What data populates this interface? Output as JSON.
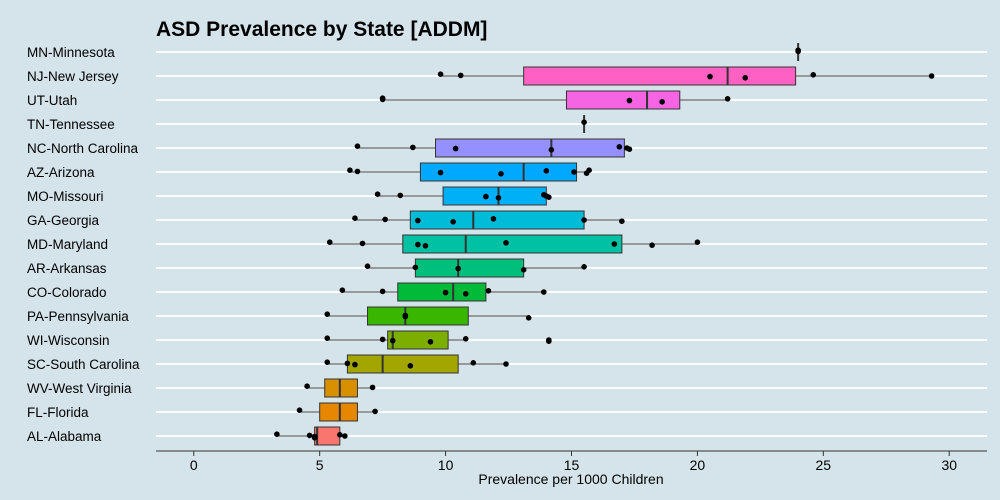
{
  "chart_data": {
    "type": "boxplot",
    "title": "ASD Prevalence by State [ADDM]",
    "xlabel": "Prevalence per 1000 Children",
    "ylabel": "",
    "xlim": [
      -1.5,
      31.5
    ],
    "xticks": [
      0,
      5,
      10,
      15,
      20,
      25,
      30
    ],
    "grid": "horizontal",
    "series": [
      {
        "label": "MN-Minnesota",
        "color": "#ff66cc",
        "box": [
          24.0,
          24.0,
          24.0,
          24.0,
          24.0
        ],
        "points": [
          24.0,
          24.0
        ]
      },
      {
        "label": "NJ-New Jersey",
        "color": "#ff61c3",
        "box": [
          9.8,
          13.1,
          21.2,
          23.9,
          29.3
        ],
        "points": [
          9.8,
          10.6,
          20.5,
          21.9,
          24.6,
          29.3
        ]
      },
      {
        "label": "UT-Utah",
        "color": "#f564e3",
        "box": [
          7.5,
          14.8,
          18.0,
          19.3,
          21.2
        ],
        "points": [
          7.5,
          7.5,
          17.3,
          18.6,
          21.2
        ]
      },
      {
        "label": "TN-Tennessee",
        "color": "#e76bf3",
        "box": [
          15.5,
          15.5,
          15.5,
          15.5,
          15.5
        ],
        "points": [
          15.5
        ]
      },
      {
        "label": "NC-North Carolina",
        "color": "#9590ff",
        "box": [
          6.5,
          9.6,
          14.2,
          17.1,
          17.3
        ],
        "points": [
          6.5,
          8.7,
          10.4,
          14.2,
          16.9,
          17.2,
          17.3
        ]
      },
      {
        "label": "AZ-Arizona",
        "color": "#00a9ff",
        "box": [
          6.2,
          9.0,
          13.1,
          15.2,
          15.7
        ],
        "points": [
          6.2,
          6.5,
          9.8,
          12.2,
          14.0,
          15.1,
          15.6,
          15.7
        ]
      },
      {
        "label": "MO-Missouri",
        "color": "#00b0f6",
        "box": [
          7.3,
          9.9,
          12.1,
          14.0,
          14.1
        ],
        "points": [
          7.3,
          8.2,
          11.6,
          12.1,
          13.9,
          14.0,
          14.1
        ]
      },
      {
        "label": "GA-Georgia",
        "color": "#00bcd8",
        "box": [
          6.4,
          8.6,
          11.1,
          15.5,
          17.0
        ],
        "points": [
          6.4,
          7.6,
          8.9,
          10.3,
          11.9,
          15.5,
          17.0
        ]
      },
      {
        "label": "MD-Maryland",
        "color": "#00c1a3",
        "box": [
          5.4,
          8.3,
          10.8,
          17.0,
          20.0
        ],
        "points": [
          5.4,
          6.7,
          8.9,
          9.2,
          12.4,
          16.7,
          18.2,
          20.0
        ]
      },
      {
        "label": "AR-Arkansas",
        "color": "#00bf7d",
        "box": [
          6.9,
          8.8,
          10.5,
          13.1,
          15.5
        ],
        "points": [
          6.9,
          8.8,
          10.5,
          13.1,
          15.5
        ]
      },
      {
        "label": "CO-Colorado",
        "color": "#00ba38",
        "box": [
          5.9,
          8.1,
          10.3,
          11.6,
          13.9
        ],
        "points": [
          5.9,
          7.5,
          10.0,
          10.8,
          11.7,
          13.9
        ]
      },
      {
        "label": "PA-Pennsylvania",
        "color": "#39b600",
        "box": [
          5.3,
          6.9,
          8.4,
          10.9,
          13.3
        ],
        "points": [
          5.3,
          8.4,
          8.4,
          13.3
        ]
      },
      {
        "label": "WI-Wisconsin",
        "color": "#7cae00",
        "box": [
          5.3,
          7.7,
          7.9,
          10.1,
          10.8
        ],
        "points": [
          5.3,
          7.5,
          7.9,
          9.4,
          10.8,
          14.1,
          14.1
        ]
      },
      {
        "label": "SC-South Carolina",
        "color": "#a3a500",
        "box": [
          5.3,
          6.1,
          7.5,
          10.5,
          12.4
        ],
        "points": [
          5.3,
          6.1,
          6.4,
          8.6,
          11.1,
          12.4
        ]
      },
      {
        "label": "WV-West Virginia",
        "color": "#d89000",
        "box": [
          4.5,
          5.2,
          5.8,
          6.5,
          7.1
        ],
        "points": [
          4.5,
          7.1
        ]
      },
      {
        "label": "FL-Florida",
        "color": "#e58700",
        "box": [
          4.2,
          5.0,
          5.8,
          6.5,
          7.2
        ],
        "points": [
          4.2,
          7.2
        ]
      },
      {
        "label": "AL-Alabama",
        "color": "#f8766d",
        "box": [
          3.3,
          4.8,
          4.9,
          5.8,
          6.0
        ],
        "points": [
          3.3,
          4.6,
          4.8,
          4.8,
          5.8,
          6.0
        ]
      }
    ]
  }
}
